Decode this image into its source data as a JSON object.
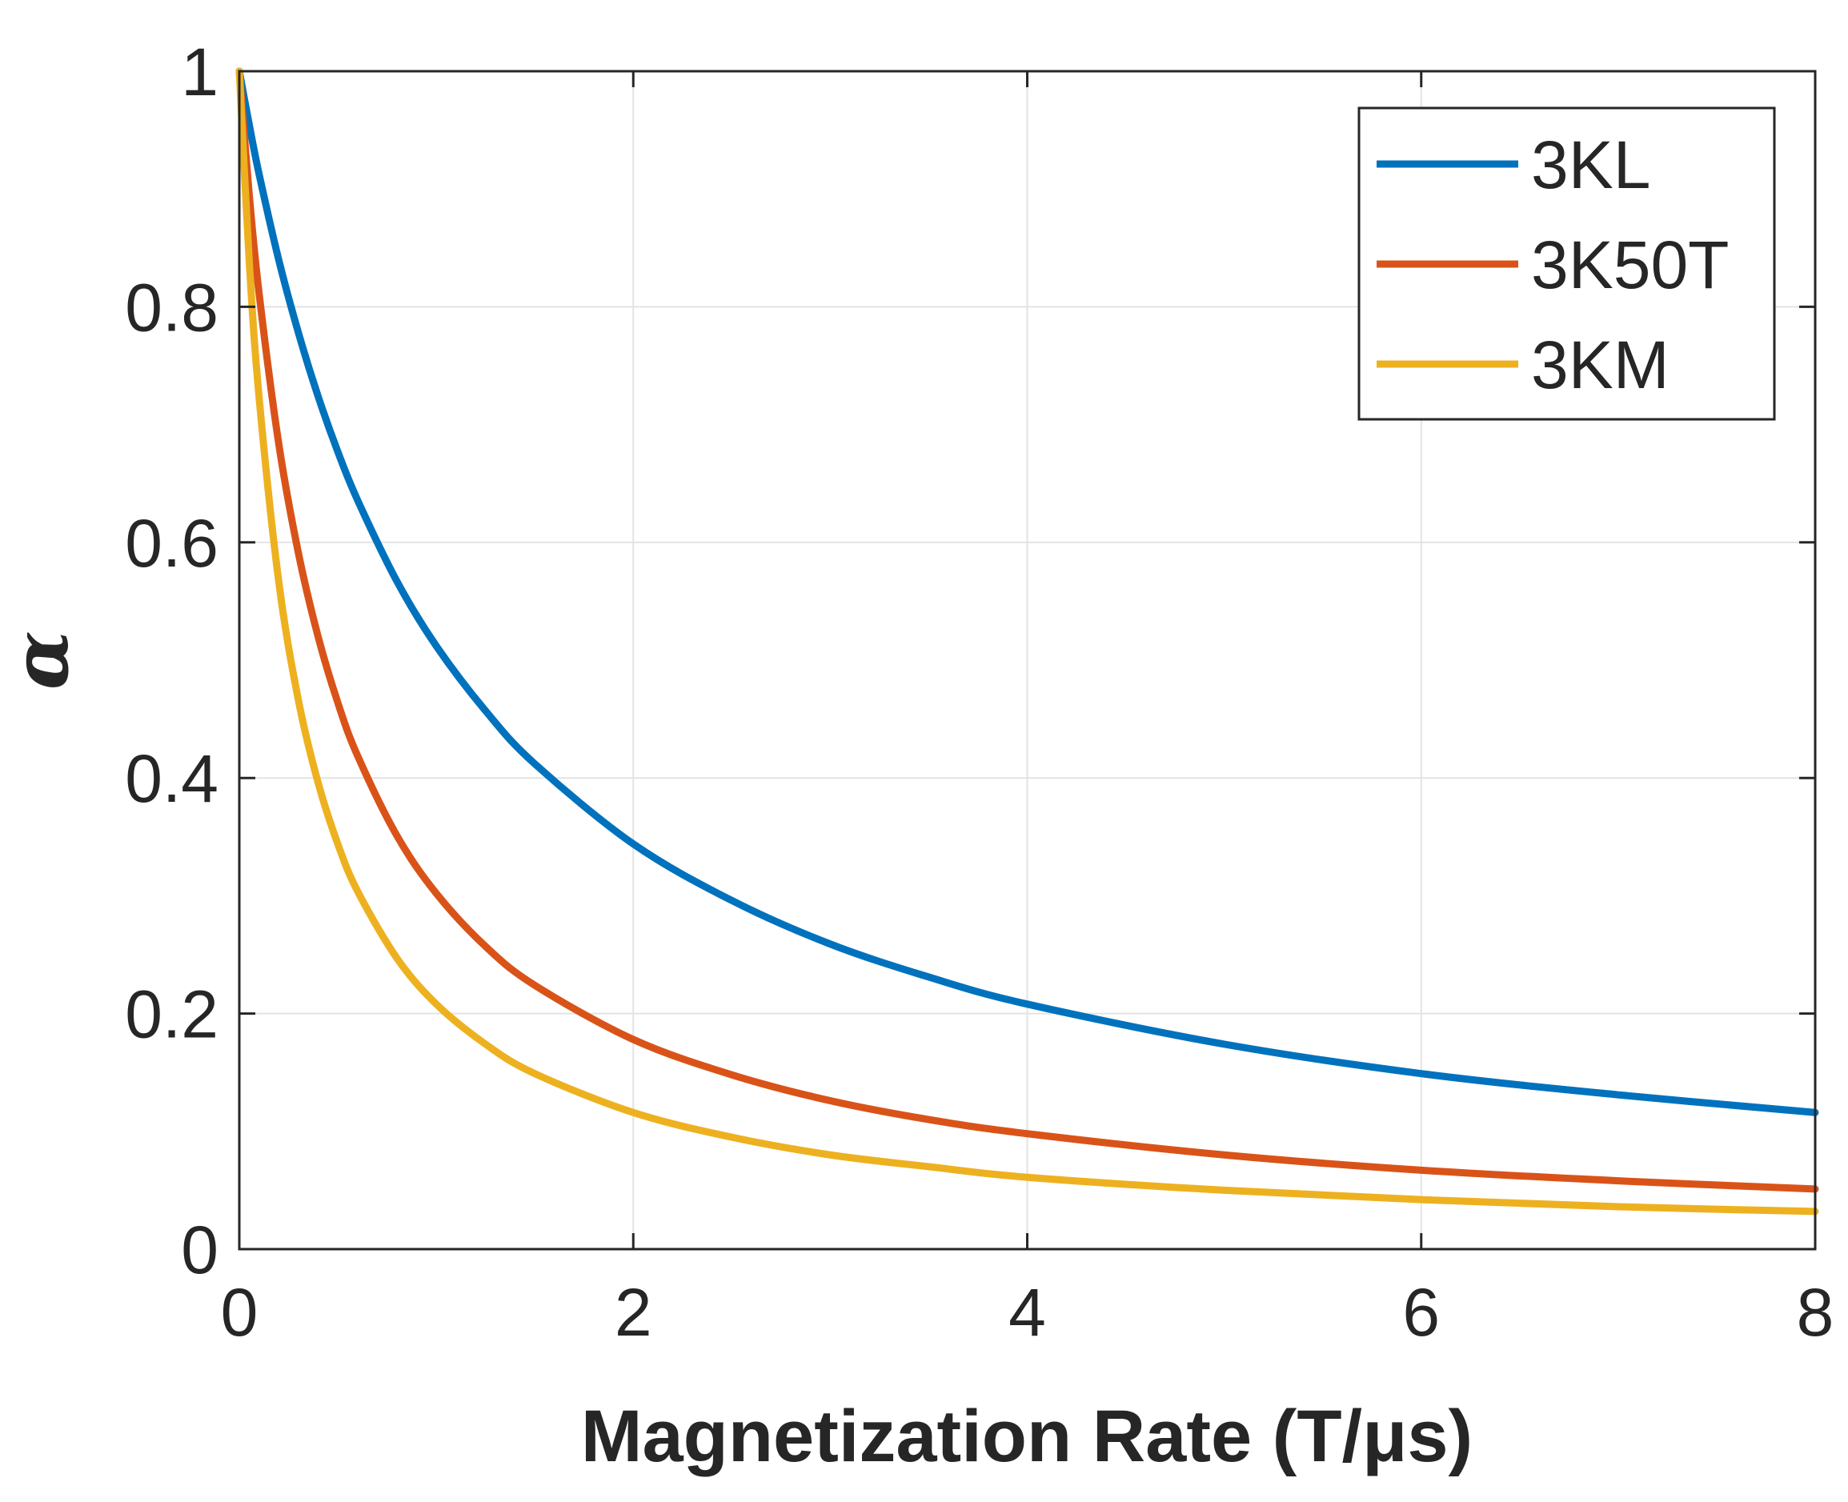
{
  "chart_data": {
    "type": "line",
    "title": "",
    "xlabel": "Magnetization Rate (T/μs)",
    "ylabel": "α",
    "xlim": [
      0,
      8
    ],
    "ylim": [
      0,
      1
    ],
    "xticks": [
      "0",
      "2",
      "4",
      "6",
      "8"
    ],
    "yticks": [
      "0",
      "0.2",
      "0.4",
      "0.6",
      "0.8",
      "1"
    ],
    "grid": true,
    "legend_position": "top-right",
    "x": [
      0,
      0.05,
      0.1,
      0.2,
      0.3,
      0.4,
      0.5,
      0.6,
      0.8,
      1.0,
      1.25,
      1.5,
      2.0,
      2.5,
      3.0,
      3.5,
      4.0,
      5.0,
      6.0,
      7.0,
      8.0
    ],
    "series": [
      {
        "name": "3KL",
        "color": "#0072BD",
        "values": [
          1.0,
          0.955,
          0.913,
          0.84,
          0.778,
          0.724,
          0.677,
          0.636,
          0.567,
          0.512,
          0.457,
          0.412,
          0.344,
          0.296,
          0.259,
          0.231,
          0.208,
          0.174,
          0.149,
          0.131,
          0.116
        ]
      },
      {
        "name": "3K50T",
        "color": "#D95319",
        "values": [
          1.0,
          0.896,
          0.812,
          0.684,
          0.591,
          0.52,
          0.464,
          0.419,
          0.351,
          0.302,
          0.257,
          0.224,
          0.178,
          0.148,
          0.126,
          0.11,
          0.098,
          0.08,
          0.067,
          0.058,
          0.051
        ]
      },
      {
        "name": "3KM",
        "color": "#EDB120",
        "values": [
          1.0,
          0.84,
          0.724,
          0.567,
          0.466,
          0.396,
          0.344,
          0.304,
          0.247,
          0.208,
          0.174,
          0.149,
          0.116,
          0.095,
          0.08,
          0.07,
          0.061,
          0.05,
          0.042,
          0.036,
          0.032
        ]
      }
    ]
  }
}
